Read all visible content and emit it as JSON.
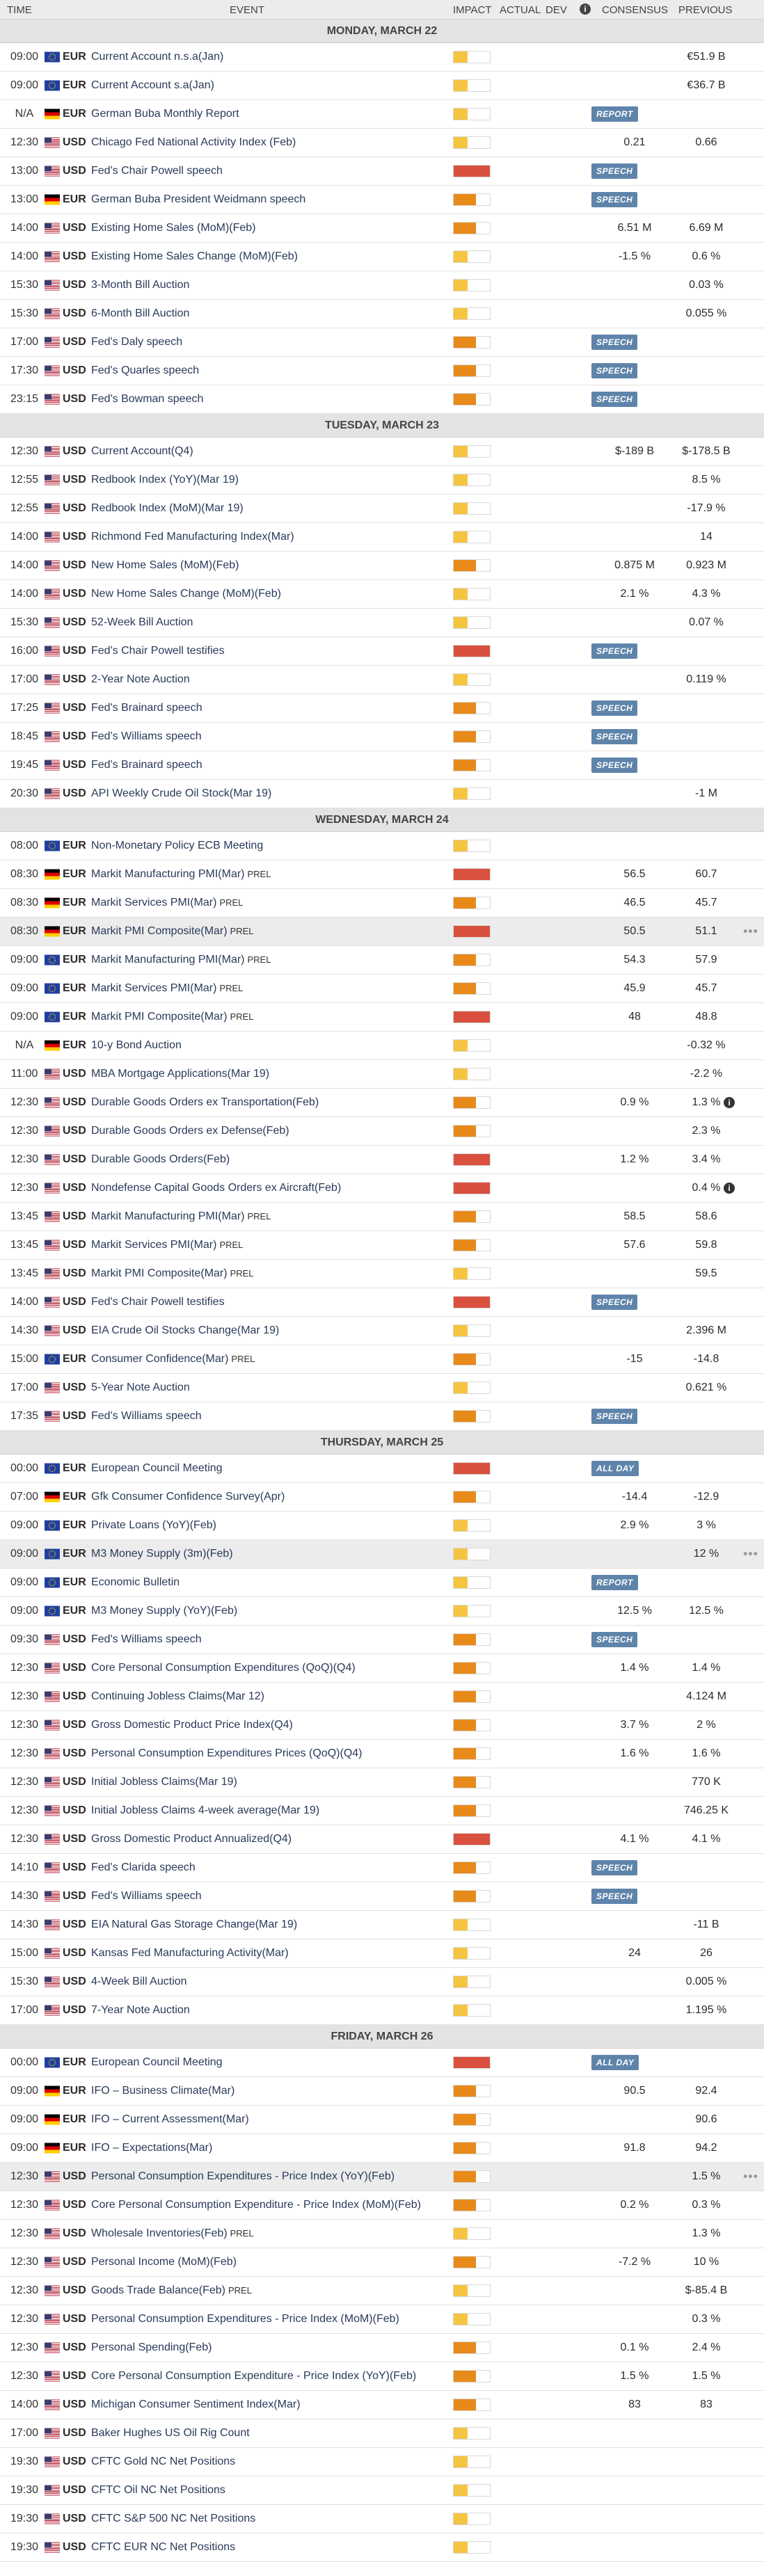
{
  "header": {
    "time": "TIME",
    "event": "EVENT",
    "impact": "IMPACT",
    "actual": "ACTUAL",
    "dev": "DEV",
    "consensus": "CONSENSUS",
    "previous": "PREVIOUS"
  },
  "days": [
    {
      "title": "MONDAY, MARCH 22",
      "rows": [
        {
          "t": "09:00",
          "f": "eu",
          "c": "EUR",
          "e": "Current Account n.s.a(Jan)",
          "i": "low",
          "prev": "€51.9 B"
        },
        {
          "t": "09:00",
          "f": "eu",
          "c": "EUR",
          "e": "Current Account s.a(Jan)",
          "i": "low",
          "prev": "€36.7 B"
        },
        {
          "t": "N/A",
          "f": "de",
          "c": "EUR",
          "e": "German Buba Monthly Report",
          "i": "low",
          "badge": "REPORT"
        },
        {
          "t": "12:30",
          "f": "us",
          "c": "USD",
          "e": "Chicago Fed National Activity Index (Feb)",
          "i": "low",
          "cons": "0.21",
          "prev": "0.66"
        },
        {
          "t": "13:00",
          "f": "us",
          "c": "USD",
          "e": "Fed's Chair Powell speech",
          "i": "high",
          "badge": "SPEECH"
        },
        {
          "t": "13:00",
          "f": "de",
          "c": "EUR",
          "e": "German Buba President Weidmann speech",
          "i": "medium",
          "badge": "SPEECH"
        },
        {
          "t": "14:00",
          "f": "us",
          "c": "USD",
          "e": "Existing Home Sales (MoM)(Feb)",
          "i": "medium",
          "cons": "6.51 M",
          "prev": "6.69 M"
        },
        {
          "t": "14:00",
          "f": "us",
          "c": "USD",
          "e": "Existing Home Sales Change (MoM)(Feb)",
          "i": "low",
          "cons": "-1.5 %",
          "prev": "0.6 %"
        },
        {
          "t": "15:30",
          "f": "us",
          "c": "USD",
          "e": "3-Month Bill Auction",
          "i": "low",
          "prev": "0.03 %"
        },
        {
          "t": "15:30",
          "f": "us",
          "c": "USD",
          "e": "6-Month Bill Auction",
          "i": "low",
          "prev": "0.055 %"
        },
        {
          "t": "17:00",
          "f": "us",
          "c": "USD",
          "e": "Fed's Daly speech",
          "i": "medium",
          "badge": "SPEECH"
        },
        {
          "t": "17:30",
          "f": "us",
          "c": "USD",
          "e": "Fed's Quarles speech",
          "i": "medium",
          "badge": "SPEECH"
        },
        {
          "t": "23:15",
          "f": "us",
          "c": "USD",
          "e": "Fed's Bowman speech",
          "i": "medium",
          "badge": "SPEECH"
        }
      ]
    },
    {
      "title": "TUESDAY, MARCH 23",
      "rows": [
        {
          "t": "12:30",
          "f": "us",
          "c": "USD",
          "e": "Current Account(Q4)",
          "i": "low",
          "cons": "$-189 B",
          "prev": "$-178.5 B"
        },
        {
          "t": "12:55",
          "f": "us",
          "c": "USD",
          "e": "Redbook Index (YoY)(Mar 19)",
          "i": "low",
          "prev": "8.5 %"
        },
        {
          "t": "12:55",
          "f": "us",
          "c": "USD",
          "e": "Redbook Index (MoM)(Mar 19)",
          "i": "low",
          "prev": "-17.9 %"
        },
        {
          "t": "14:00",
          "f": "us",
          "c": "USD",
          "e": "Richmond Fed Manufacturing Index(Mar)",
          "i": "low",
          "prev": "14"
        },
        {
          "t": "14:00",
          "f": "us",
          "c": "USD",
          "e": "New Home Sales (MoM)(Feb)",
          "i": "medium",
          "cons": "0.875 M",
          "prev": "0.923 M"
        },
        {
          "t": "14:00",
          "f": "us",
          "c": "USD",
          "e": "New Home Sales Change (MoM)(Feb)",
          "i": "low",
          "cons": "2.1 %",
          "prev": "4.3 %"
        },
        {
          "t": "15:30",
          "f": "us",
          "c": "USD",
          "e": "52-Week Bill Auction",
          "i": "low",
          "prev": "0.07 %"
        },
        {
          "t": "16:00",
          "f": "us",
          "c": "USD",
          "e": "Fed's Chair Powell testifies",
          "i": "high",
          "badge": "SPEECH"
        },
        {
          "t": "17:00",
          "f": "us",
          "c": "USD",
          "e": "2-Year Note Auction",
          "i": "low",
          "prev": "0.119 %"
        },
        {
          "t": "17:25",
          "f": "us",
          "c": "USD",
          "e": "Fed's Brainard speech",
          "i": "medium",
          "badge": "SPEECH"
        },
        {
          "t": "18:45",
          "f": "us",
          "c": "USD",
          "e": "Fed's Williams speech",
          "i": "medium",
          "badge": "SPEECH"
        },
        {
          "t": "19:45",
          "f": "us",
          "c": "USD",
          "e": "Fed's Brainard speech",
          "i": "medium",
          "badge": "SPEECH"
        },
        {
          "t": "20:30",
          "f": "us",
          "c": "USD",
          "e": "API Weekly Crude Oil Stock(Mar 19)",
          "i": "low",
          "prev": "-1 M"
        }
      ]
    },
    {
      "title": "WEDNESDAY, MARCH 24",
      "rows": [
        {
          "t": "08:00",
          "f": "eu",
          "c": "EUR",
          "e": "Non-Monetary Policy ECB Meeting",
          "i": "low"
        },
        {
          "t": "08:30",
          "f": "de",
          "c": "EUR",
          "e": "Markit Manufacturing PMI(Mar)",
          "p": "PREL",
          "i": "high",
          "cons": "56.5",
          "prev": "60.7"
        },
        {
          "t": "08:30",
          "f": "de",
          "c": "EUR",
          "e": "Markit Services PMI(Mar)",
          "p": "PREL",
          "i": "medium",
          "cons": "46.5",
          "prev": "45.7"
        },
        {
          "t": "08:30",
          "f": "de",
          "c": "EUR",
          "e": "Markit PMI Composite(Mar)",
          "p": "PREL",
          "i": "high",
          "cons": "50.5",
          "prev": "51.1",
          "sel": true
        },
        {
          "t": "09:00",
          "f": "eu",
          "c": "EUR",
          "e": "Markit Manufacturing PMI(Mar)",
          "p": "PREL",
          "i": "medium",
          "cons": "54.3",
          "prev": "57.9"
        },
        {
          "t": "09:00",
          "f": "eu",
          "c": "EUR",
          "e": "Markit Services PMI(Mar)",
          "p": "PREL",
          "i": "medium",
          "cons": "45.9",
          "prev": "45.7"
        },
        {
          "t": "09:00",
          "f": "eu",
          "c": "EUR",
          "e": "Markit PMI Composite(Mar)",
          "p": "PREL",
          "i": "high",
          "cons": "48",
          "prev": "48.8"
        },
        {
          "t": "N/A",
          "f": "de",
          "c": "EUR",
          "e": "10-y Bond Auction",
          "i": "low",
          "prev": "-0.32 %"
        },
        {
          "t": "11:00",
          "f": "us",
          "c": "USD",
          "e": "MBA Mortgage Applications(Mar 19)",
          "i": "low",
          "prev": "-2.2 %"
        },
        {
          "t": "12:30",
          "f": "us",
          "c": "USD",
          "e": "Durable Goods Orders ex Transportation(Feb)",
          "i": "medium",
          "cons": "0.9 %",
          "prev": "1.3 %",
          "info": true
        },
        {
          "t": "12:30",
          "f": "us",
          "c": "USD",
          "e": "Durable Goods Orders ex Defense(Feb)",
          "i": "medium",
          "prev": "2.3 %"
        },
        {
          "t": "12:30",
          "f": "us",
          "c": "USD",
          "e": "Durable Goods Orders(Feb)",
          "i": "high",
          "cons": "1.2 %",
          "prev": "3.4 %"
        },
        {
          "t": "12:30",
          "f": "us",
          "c": "USD",
          "e": "Nondefense Capital Goods Orders ex Aircraft(Feb)",
          "i": "high",
          "prev": "0.4 %",
          "info": true
        },
        {
          "t": "13:45",
          "f": "us",
          "c": "USD",
          "e": "Markit Manufacturing PMI(Mar)",
          "p": "PREL",
          "i": "medium",
          "cons": "58.5",
          "prev": "58.6"
        },
        {
          "t": "13:45",
          "f": "us",
          "c": "USD",
          "e": "Markit Services PMI(Mar)",
          "p": "PREL",
          "i": "medium",
          "cons": "57.6",
          "prev": "59.8"
        },
        {
          "t": "13:45",
          "f": "us",
          "c": "USD",
          "e": "Markit PMI Composite(Mar)",
          "p": "PREL",
          "i": "low",
          "prev": "59.5"
        },
        {
          "t": "14:00",
          "f": "us",
          "c": "USD",
          "e": "Fed's Chair Powell testifies",
          "i": "high",
          "badge": "SPEECH"
        },
        {
          "t": "14:30",
          "f": "us",
          "c": "USD",
          "e": "EIA Crude Oil Stocks Change(Mar 19)",
          "i": "low",
          "prev": "2.396 M"
        },
        {
          "t": "15:00",
          "f": "eu",
          "c": "EUR",
          "e": "Consumer Confidence(Mar)",
          "p": "PREL",
          "i": "medium",
          "cons": "-15",
          "prev": "-14.8"
        },
        {
          "t": "17:00",
          "f": "us",
          "c": "USD",
          "e": "5-Year Note Auction",
          "i": "low",
          "prev": "0.621 %"
        },
        {
          "t": "17:35",
          "f": "us",
          "c": "USD",
          "e": "Fed's Williams speech",
          "i": "medium",
          "badge": "SPEECH"
        }
      ]
    },
    {
      "title": "THURSDAY, MARCH 25",
      "rows": [
        {
          "t": "00:00",
          "f": "eu",
          "c": "EUR",
          "e": "European Council Meeting",
          "i": "high",
          "badge": "ALL DAY"
        },
        {
          "t": "07:00",
          "f": "de",
          "c": "EUR",
          "e": "Gfk Consumer Confidence Survey(Apr)",
          "i": "medium",
          "cons": "-14.4",
          "prev": "-12.9"
        },
        {
          "t": "09:00",
          "f": "eu",
          "c": "EUR",
          "e": "Private Loans (YoY)(Feb)",
          "i": "low",
          "cons": "2.9 %",
          "prev": "3 %"
        },
        {
          "t": "09:00",
          "f": "eu",
          "c": "EUR",
          "e": "M3 Money Supply (3m)(Feb)",
          "i": "low",
          "prev": "12 %",
          "sel": true
        },
        {
          "t": "09:00",
          "f": "eu",
          "c": "EUR",
          "e": "Economic Bulletin",
          "i": "low",
          "badge": "REPORT"
        },
        {
          "t": "09:00",
          "f": "eu",
          "c": "EUR",
          "e": "M3 Money Supply (YoY)(Feb)",
          "i": "low",
          "cons": "12.5 %",
          "prev": "12.5 %"
        },
        {
          "t": "09:30",
          "f": "us",
          "c": "USD",
          "e": "Fed's Williams speech",
          "i": "medium",
          "badge": "SPEECH"
        },
        {
          "t": "12:30",
          "f": "us",
          "c": "USD",
          "e": "Core Personal Consumption Expenditures (QoQ)(Q4)",
          "i": "medium",
          "cons": "1.4 %",
          "prev": "1.4 %"
        },
        {
          "t": "12:30",
          "f": "us",
          "c": "USD",
          "e": "Continuing Jobless Claims(Mar 12)",
          "i": "medium",
          "prev": "4.124 M"
        },
        {
          "t": "12:30",
          "f": "us",
          "c": "USD",
          "e": "Gross Domestic Product Price Index(Q4)",
          "i": "medium",
          "cons": "3.7 %",
          "prev": "2 %"
        },
        {
          "t": "12:30",
          "f": "us",
          "c": "USD",
          "e": "Personal Consumption Expenditures Prices (QoQ)(Q4)",
          "i": "medium",
          "cons": "1.6 %",
          "prev": "1.6 %"
        },
        {
          "t": "12:30",
          "f": "us",
          "c": "USD",
          "e": "Initial Jobless Claims(Mar 19)",
          "i": "medium",
          "prev": "770 K"
        },
        {
          "t": "12:30",
          "f": "us",
          "c": "USD",
          "e": "Initial Jobless Claims 4-week average(Mar 19)",
          "i": "medium",
          "prev": "746.25 K"
        },
        {
          "t": "12:30",
          "f": "us",
          "c": "USD",
          "e": "Gross Domestic Product Annualized(Q4)",
          "i": "high",
          "cons": "4.1 %",
          "prev": "4.1 %"
        },
        {
          "t": "14:10",
          "f": "us",
          "c": "USD",
          "e": "Fed's Clarida speech",
          "i": "medium",
          "badge": "SPEECH"
        },
        {
          "t": "14:30",
          "f": "us",
          "c": "USD",
          "e": "Fed's Williams speech",
          "i": "medium",
          "badge": "SPEECH"
        },
        {
          "t": "14:30",
          "f": "us",
          "c": "USD",
          "e": "EIA Natural Gas Storage Change(Mar 19)",
          "i": "low",
          "prev": "-11 B"
        },
        {
          "t": "15:00",
          "f": "us",
          "c": "USD",
          "e": "Kansas Fed Manufacturing Activity(Mar)",
          "i": "low",
          "cons": "24",
          "prev": "26"
        },
        {
          "t": "15:30",
          "f": "us",
          "c": "USD",
          "e": "4-Week Bill Auction",
          "i": "low",
          "prev": "0.005 %"
        },
        {
          "t": "17:00",
          "f": "us",
          "c": "USD",
          "e": "7-Year Note Auction",
          "i": "low",
          "prev": "1.195 %"
        }
      ]
    },
    {
      "title": "FRIDAY, MARCH 26",
      "rows": [
        {
          "t": "00:00",
          "f": "eu",
          "c": "EUR",
          "e": "European Council Meeting",
          "i": "high",
          "badge": "ALL DAY"
        },
        {
          "t": "09:00",
          "f": "de",
          "c": "EUR",
          "e": "IFO – Business Climate(Mar)",
          "i": "medium",
          "cons": "90.5",
          "prev": "92.4"
        },
        {
          "t": "09:00",
          "f": "de",
          "c": "EUR",
          "e": "IFO – Current Assessment(Mar)",
          "i": "medium",
          "prev": "90.6"
        },
        {
          "t": "09:00",
          "f": "de",
          "c": "EUR",
          "e": "IFO – Expectations(Mar)",
          "i": "medium",
          "cons": "91.8",
          "prev": "94.2"
        },
        {
          "t": "12:30",
          "f": "us",
          "c": "USD",
          "e": "Personal Consumption Expenditures - Price Index (YoY)(Feb)",
          "i": "medium",
          "prev": "1.5 %",
          "sel": true
        },
        {
          "t": "12:30",
          "f": "us",
          "c": "USD",
          "e": "Core Personal Consumption Expenditure - Price Index (MoM)(Feb)",
          "i": "medium",
          "cons": "0.2 %",
          "prev": "0.3 %"
        },
        {
          "t": "12:30",
          "f": "us",
          "c": "USD",
          "e": "Wholesale Inventories(Feb)",
          "p": "PREL",
          "i": "low",
          "prev": "1.3 %"
        },
        {
          "t": "12:30",
          "f": "us",
          "c": "USD",
          "e": "Personal Income (MoM)(Feb)",
          "i": "medium",
          "cons": "-7.2 %",
          "prev": "10 %"
        },
        {
          "t": "12:30",
          "f": "us",
          "c": "USD",
          "e": "Goods Trade Balance(Feb)",
          "p": "PREL",
          "i": "low",
          "prev": "$-85.4 B"
        },
        {
          "t": "12:30",
          "f": "us",
          "c": "USD",
          "e": "Personal Consumption Expenditures - Price Index (MoM)(Feb)",
          "i": "low",
          "prev": "0.3 %"
        },
        {
          "t": "12:30",
          "f": "us",
          "c": "USD",
          "e": "Personal Spending(Feb)",
          "i": "medium",
          "cons": "0.1 %",
          "prev": "2.4 %"
        },
        {
          "t": "12:30",
          "f": "us",
          "c": "USD",
          "e": "Core Personal Consumption Expenditure - Price Index (YoY)(Feb)",
          "i": "medium",
          "cons": "1.5 %",
          "prev": "1.5 %"
        },
        {
          "t": "14:00",
          "f": "us",
          "c": "USD",
          "e": "Michigan Consumer Sentiment Index(Mar)",
          "i": "medium",
          "cons": "83",
          "prev": "83"
        },
        {
          "t": "17:00",
          "f": "us",
          "c": "USD",
          "e": "Baker Hughes US Oil Rig Count",
          "i": "low"
        },
        {
          "t": "19:30",
          "f": "us",
          "c": "USD",
          "e": "CFTC Gold NC Net Positions",
          "i": "low"
        },
        {
          "t": "19:30",
          "f": "us",
          "c": "USD",
          "e": "CFTC Oil NC Net Positions",
          "i": "low"
        },
        {
          "t": "19:30",
          "f": "us",
          "c": "USD",
          "e": "CFTC S&P 500 NC Net Positions",
          "i": "low"
        },
        {
          "t": "19:30",
          "f": "us",
          "c": "USD",
          "e": "CFTC EUR NC Net Positions",
          "i": "low"
        }
      ]
    }
  ]
}
